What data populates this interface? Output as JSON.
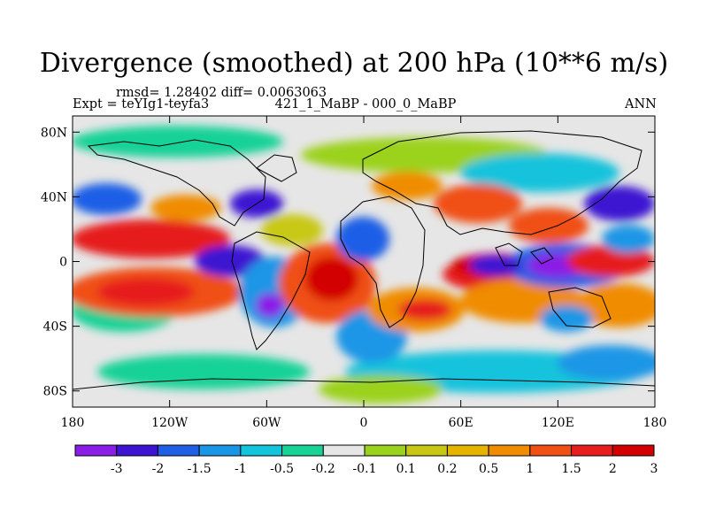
{
  "title": "Divergence (smoothed) at 200 hPa (10**6 m/s)",
  "stats": "rmsd= 1.28402  diff= 0.0063063",
  "left_label": "Expt = teYIg1-teyfa3",
  "center_label": "421_1_MaBP - 000_0_MaBP",
  "right_label": "ANN",
  "lat_ticks": [
    {
      "label": "80N",
      "lat": 80
    },
    {
      "label": "40N",
      "lat": 40
    },
    {
      "label": "0",
      "lat": 0
    },
    {
      "label": "40S",
      "lat": -40
    },
    {
      "label": "80S",
      "lat": -80
    }
  ],
  "lon_ticks": [
    {
      "label": "180",
      "lon": -180
    },
    {
      "label": "120W",
      "lon": -120
    },
    {
      "label": "60W",
      "lon": -60
    },
    {
      "label": "0",
      "lon": 0
    },
    {
      "label": "60E",
      "lon": 60
    },
    {
      "label": "120E",
      "lon": 120
    },
    {
      "label": "180",
      "lon": 180
    }
  ],
  "colorbar": {
    "colors": [
      "#8a1ee6",
      "#3c14d2",
      "#1f5fe6",
      "#1a96e6",
      "#14c3dc",
      "#19d296",
      "#e6e6e6",
      "#9bd21e",
      "#c8c814",
      "#e6b400",
      "#f08c00",
      "#f05014",
      "#e61e1e",
      "#d20000"
    ],
    "levels": [
      "-3",
      "-2",
      "-1.5",
      "-1",
      "-0.5",
      "-0.2",
      "-0.1",
      "0.1",
      "0.2",
      "0.5",
      "1",
      "1.5",
      "2",
      "3"
    ]
  }
}
